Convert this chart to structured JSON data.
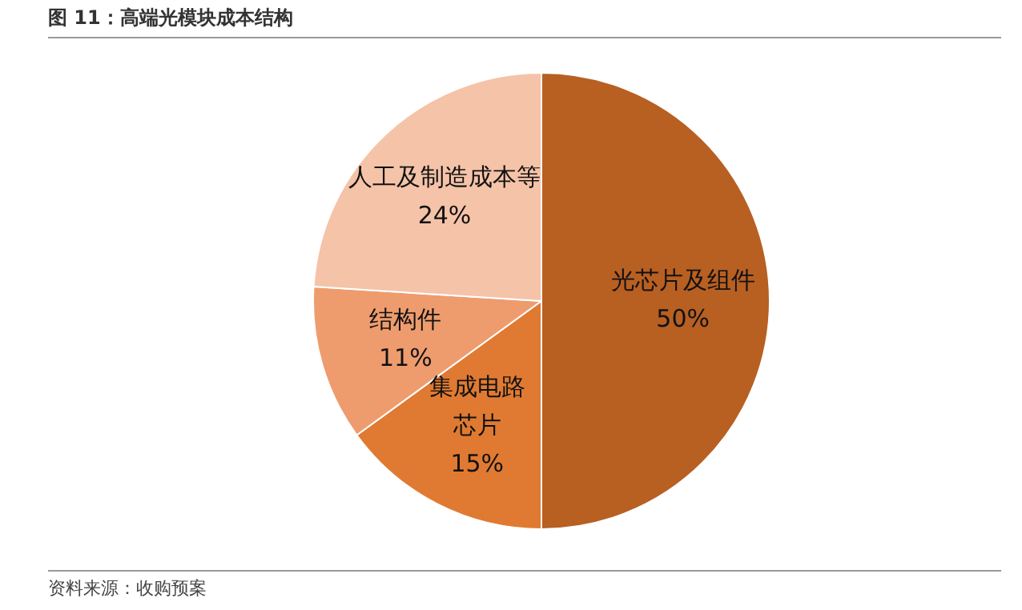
{
  "chart_data": {
    "type": "pie",
    "title": "图 11：高端光模块成本结构",
    "categories": [
      "光芯片及组件",
      "集成电路芯片",
      "结构件",
      "人工及制造成本等"
    ],
    "values": [
      50,
      15,
      11,
      24
    ],
    "colors": [
      "#b85f22",
      "#e07a32",
      "#ee9c6e",
      "#f5c3a8"
    ],
    "value_labels": [
      "50%",
      "15%",
      "11%",
      "24%"
    ],
    "legend": false,
    "annotations": [
      "资料来源：收购预案"
    ]
  }
}
